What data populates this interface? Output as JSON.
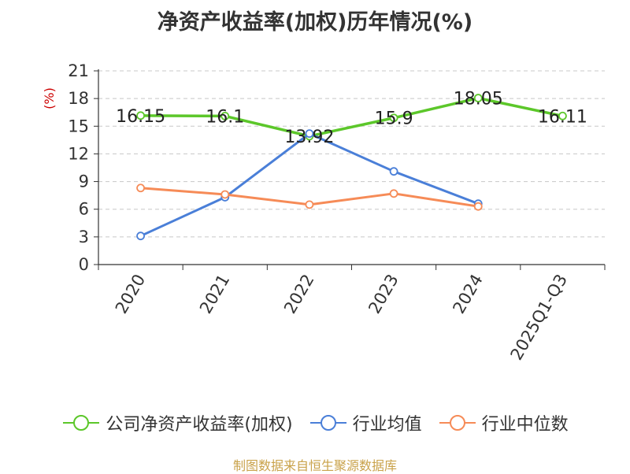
{
  "chart_data": {
    "type": "line",
    "title": "净资产收益率(加权)历年情况(%)",
    "ylabel": "(%)",
    "xlabel": "",
    "categories": [
      "2020",
      "2021",
      "2022",
      "2023",
      "2024",
      "2025Q1-Q3"
    ],
    "ylim": [
      0,
      21
    ],
    "yticks": [
      0,
      3,
      6,
      9,
      12,
      15,
      18,
      21
    ],
    "grid": true,
    "legend_position": "bottom",
    "series": [
      {
        "name": "公司净资产收益率(加权)",
        "color": "#5cc72a",
        "values": [
          16.15,
          16.1,
          13.92,
          15.9,
          18.05,
          16.11
        ],
        "labels": [
          "16.15",
          "16.1",
          "13.92",
          "15.9",
          "18.05",
          "16.11"
        ]
      },
      {
        "name": "行业均值",
        "color": "#4a7fd8",
        "values": [
          3.1,
          7.3,
          14.2,
          10.1,
          6.6,
          null
        ],
        "labels": []
      },
      {
        "name": "行业中位数",
        "color": "#f68b57",
        "values": [
          8.3,
          7.6,
          6.5,
          7.7,
          6.3,
          null
        ],
        "labels": []
      }
    ]
  },
  "source_note": "制图数据来自恒生聚源数据库"
}
